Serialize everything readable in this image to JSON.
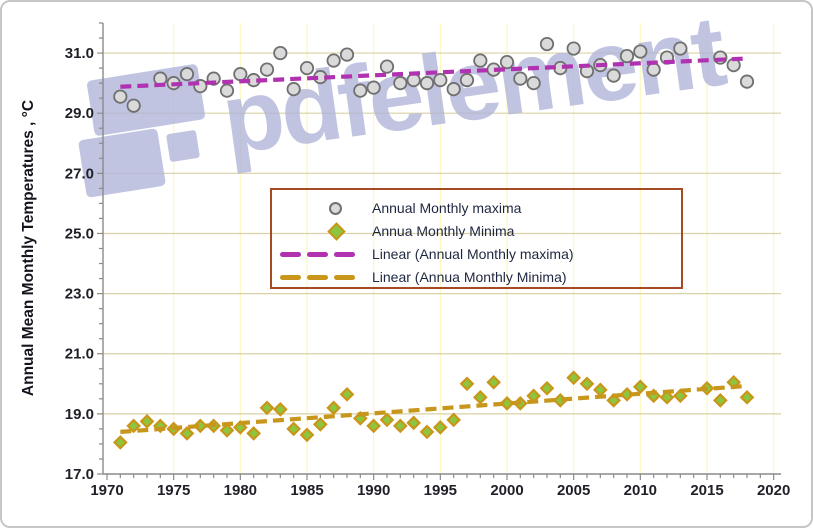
{
  "watermark": {
    "text": "pdfelement",
    "color": "#afb4d9",
    "opacity": 0.78
  },
  "chart_data": {
    "type": "scatter",
    "title": "",
    "xlabel": "",
    "ylabel": "Annual Mean Monthly Temperatures , °C",
    "xlim": [
      1969.7,
      2020.55
    ],
    "ylim": [
      17.0,
      32.0
    ],
    "x_ticks_major": [
      1970,
      1975,
      1980,
      1985,
      1990,
      1995,
      2000,
      2005,
      2010,
      2015,
      2020
    ],
    "x_minor_step": 1,
    "y_ticks_major": [
      17.0,
      19.0,
      21.0,
      23.0,
      25.0,
      27.0,
      29.0,
      31.0
    ],
    "y_minor_step": 0.5,
    "grid": {
      "horizontal": true,
      "vertical": true
    },
    "legend_position": "center",
    "colors": {
      "h_grid": "#d9d0a5",
      "v_grid": "#fbf7c0",
      "axis": "#8a8a8a",
      "tick_label": "#1f1f28",
      "legend_border": "#a54a24",
      "maxima_fill": "#dadada",
      "maxima_stroke": "#707070",
      "minima_fill": "#8cc63e",
      "minima_stroke": "#c9961a",
      "trend_maxima": "#b032b0",
      "trend_minima": "#c8961b"
    },
    "series": [
      {
        "name": "Annual Monthly maxima",
        "marker": "circle",
        "points": [
          [
            1971,
            29.55
          ],
          [
            1972,
            29.25
          ],
          [
            1974,
            30.15
          ],
          [
            1975,
            30.0
          ],
          [
            1976,
            30.3
          ],
          [
            1977,
            29.9
          ],
          [
            1978,
            30.15
          ],
          [
            1979,
            29.75
          ],
          [
            1980,
            30.3
          ],
          [
            1981,
            30.1
          ],
          [
            1982,
            30.45
          ],
          [
            1983,
            31.0
          ],
          [
            1984,
            29.8
          ],
          [
            1985,
            30.5
          ],
          [
            1986,
            30.2
          ],
          [
            1987,
            30.75
          ],
          [
            1988,
            30.95
          ],
          [
            1989,
            29.75
          ],
          [
            1990,
            29.85
          ],
          [
            1991,
            30.55
          ],
          [
            1992,
            30.0
          ],
          [
            1993,
            30.1
          ],
          [
            1994,
            30.0
          ],
          [
            1995,
            30.1
          ],
          [
            1996,
            29.8
          ],
          [
            1997,
            30.1
          ],
          [
            1998,
            30.75
          ],
          [
            1999,
            30.45
          ],
          [
            2000,
            30.7
          ],
          [
            2001,
            30.15
          ],
          [
            2002,
            30.0
          ],
          [
            2003,
            31.3
          ],
          [
            2004,
            30.5
          ],
          [
            2005,
            31.15
          ],
          [
            2006,
            30.4
          ],
          [
            2007,
            30.6
          ],
          [
            2008,
            30.25
          ],
          [
            2009,
            30.9
          ],
          [
            2010,
            31.05
          ],
          [
            2011,
            30.45
          ],
          [
            2012,
            30.85
          ],
          [
            2013,
            31.15
          ],
          [
            2016,
            30.85
          ],
          [
            2017,
            30.6
          ],
          [
            2018,
            30.05
          ]
        ]
      },
      {
        "name": "Annua Monthly Minima",
        "marker": "diamond",
        "points": [
          [
            1971,
            18.05
          ],
          [
            1972,
            18.6
          ],
          [
            1973,
            18.75
          ],
          [
            1974,
            18.6
          ],
          [
            1975,
            18.5
          ],
          [
            1976,
            18.35
          ],
          [
            1977,
            18.6
          ],
          [
            1978,
            18.6
          ],
          [
            1979,
            18.45
          ],
          [
            1980,
            18.55
          ],
          [
            1981,
            18.35
          ],
          [
            1982,
            19.2
          ],
          [
            1983,
            19.15
          ],
          [
            1984,
            18.5
          ],
          [
            1985,
            18.3
          ],
          [
            1986,
            18.65
          ],
          [
            1987,
            19.2
          ],
          [
            1988,
            19.65
          ],
          [
            1989,
            18.85
          ],
          [
            1990,
            18.6
          ],
          [
            1991,
            18.8
          ],
          [
            1992,
            18.6
          ],
          [
            1993,
            18.7
          ],
          [
            1994,
            18.4
          ],
          [
            1995,
            18.55
          ],
          [
            1996,
            18.8
          ],
          [
            1997,
            20.0
          ],
          [
            1998,
            19.55
          ],
          [
            1999,
            20.05
          ],
          [
            2000,
            19.35
          ],
          [
            2001,
            19.35
          ],
          [
            2002,
            19.6
          ],
          [
            2003,
            19.85
          ],
          [
            2004,
            19.45
          ],
          [
            2005,
            20.2
          ],
          [
            2006,
            20.0
          ],
          [
            2007,
            19.8
          ],
          [
            2008,
            19.45
          ],
          [
            2009,
            19.65
          ],
          [
            2010,
            19.9
          ],
          [
            2011,
            19.6
          ],
          [
            2012,
            19.55
          ],
          [
            2013,
            19.6
          ],
          [
            2015,
            19.85
          ],
          [
            2016,
            19.45
          ],
          [
            2017,
            20.05
          ],
          [
            2018,
            19.55
          ]
        ]
      }
    ],
    "trendlines": [
      {
        "name": "Linear (Annual Monthly maxima)",
        "from": [
          1971,
          29.88
        ],
        "to": [
          2018,
          30.82
        ]
      },
      {
        "name": "Linear (Annua Monthly Minima)",
        "from": [
          1971,
          18.4
        ],
        "to": [
          2018,
          19.93
        ]
      }
    ],
    "legend": {
      "entries": [
        {
          "label": "Annual Monthly maxima"
        },
        {
          "label": "Annua Monthly Minima"
        },
        {
          "label": "Linear (Annual Monthly maxima)"
        },
        {
          "label": "Linear (Annua Monthly Minima)"
        }
      ]
    }
  }
}
